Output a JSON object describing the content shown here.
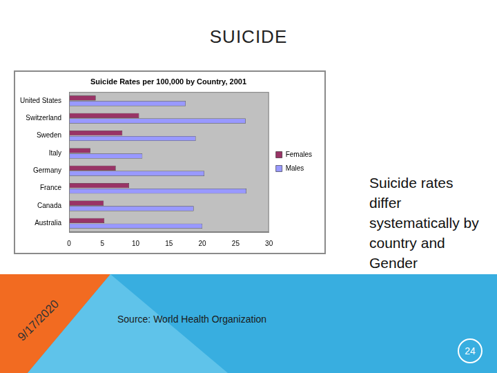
{
  "slide": {
    "title": "SUICIDE",
    "text": "Suicide rates differ systematically by country and Gender",
    "source": "Source: World Health Organization",
    "date": "9/17/2020",
    "page_number": 24
  },
  "chart_data": {
    "type": "bar",
    "orientation": "horizontal",
    "title": "Suicide Rates per 100,000 by Country, 2001",
    "categories": [
      "United States",
      "Switzerland",
      "Sweden",
      "Italy",
      "Germany",
      "France",
      "Canada",
      "Australia"
    ],
    "series": [
      {
        "name": "Females",
        "color": "#993366",
        "values": [
          4,
          10.5,
          8,
          3.2,
          7,
          9,
          5.2,
          5.3
        ]
      },
      {
        "name": "Males",
        "color": "#9999ff",
        "values": [
          17.5,
          26.5,
          19,
          11,
          20.3,
          26.6,
          18.7,
          20
        ]
      }
    ],
    "xlim": [
      0,
      30
    ],
    "xticks": [
      0,
      5,
      10,
      15,
      20,
      25,
      30
    ],
    "grid": false,
    "legend": "right"
  }
}
